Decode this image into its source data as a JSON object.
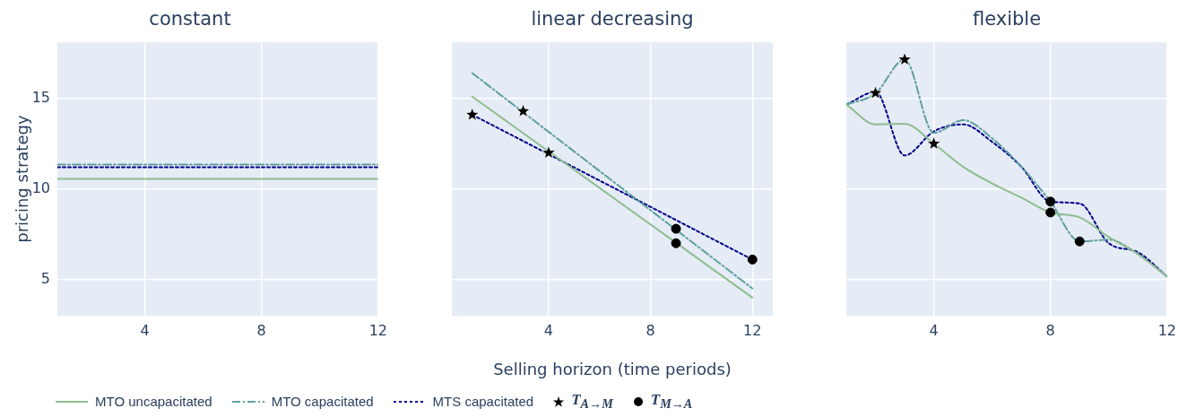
{
  "chart_data": [
    {
      "type": "line",
      "title": "constant",
      "ylabel": "pricing strategy",
      "legend": "bottom",
      "xlim": [
        1,
        12
      ],
      "xticks": [
        4,
        8,
        12
      ],
      "ylim": [
        3,
        18.1
      ],
      "yticks": [
        5,
        10,
        15
      ],
      "grid": true,
      "series": [
        {
          "name": "MTO uncapacitated",
          "color": "#8fbc8f",
          "line_style": "solid",
          "marker": "none",
          "x": [
            1,
            12
          ],
          "values": [
            10.55,
            10.55
          ]
        },
        {
          "name": "MTO capacitated",
          "color": "#5f9ea0",
          "line_style": "dashed",
          "marker": "none",
          "x": [
            1,
            12
          ],
          "values": [
            11.35,
            11.35
          ]
        },
        {
          "name": "MTS capacitated",
          "color": "#00008b",
          "line_style": "dotted",
          "marker": "none",
          "x": [
            1,
            12
          ],
          "values": [
            11.2,
            11.2
          ]
        }
      ]
    },
    {
      "type": "line",
      "title": "linear decreasing",
      "xlabel": "Selling horizon (time periods)",
      "xlim": [
        0.2,
        12.8
      ],
      "xticks": [
        4,
        8,
        12
      ],
      "ylim": [
        3,
        18.1
      ],
      "yticks": [
        5,
        10,
        15
      ],
      "grid": true,
      "tick_labels": "x",
      "legend": "bottom",
      "series": [
        {
          "name": "MTO uncapacitated",
          "color": "#8fbc8f",
          "line_style": "solid",
          "marker": "none",
          "x": [
            1,
            12
          ],
          "values": [
            15.1,
            4.0
          ]
        },
        {
          "name": "MTO capacitated",
          "color": "#5f9ea0",
          "line_style": "dashed",
          "marker": "none",
          "x": [
            1,
            12
          ],
          "values": [
            16.4,
            4.5
          ]
        },
        {
          "name": "MTS capacitated",
          "color": "#00008b",
          "line_style": "dotted",
          "marker": "none",
          "x": [
            1,
            12
          ],
          "values": [
            14.1,
            6.1
          ]
        },
        {
          "name": "T$_{A→M}$",
          "type": "scatter",
          "color": "#000000",
          "marker": "star",
          "x": [
            1,
            3,
            4
          ],
          "values": [
            14.1,
            14.3,
            12.0
          ]
        },
        {
          "name": "T$_{M→A}$",
          "type": "scatter",
          "color": "#000000",
          "marker": "circle",
          "x": [
            9,
            9,
            12
          ],
          "values": [
            7.0,
            7.8,
            6.1
          ]
        }
      ]
    },
    {
      "type": "line",
      "title": "flexible",
      "xlim": [
        1,
        12
      ],
      "xticks": [
        4,
        8,
        12
      ],
      "ylim": [
        3,
        18.1
      ],
      "yticks": [
        5,
        10,
        15
      ],
      "grid": true,
      "tick_labels": "x",
      "legend": "bottom",
      "series": [
        {
          "name": "MTO uncapacitated",
          "color": "#8fbc8f",
          "line_style": "solid",
          "marker": "none",
          "x": [
            1,
            2,
            3,
            4,
            5,
            6,
            7,
            8,
            9,
            10,
            11,
            12
          ],
          "values": [
            14.66,
            13.57,
            13.6,
            12.5,
            11.23,
            10.3,
            9.52,
            8.7,
            8.43,
            7.34,
            6.4,
            5.16
          ]
        },
        {
          "name": "MTO capacitated",
          "color": "#5f9ea0",
          "line_style": "dashed",
          "marker": "none",
          "x": [
            1,
            2,
            3,
            4,
            5,
            6,
            7,
            8,
            9,
            10,
            11,
            12
          ],
          "values": [
            14.66,
            15.28,
            17.15,
            13.1,
            13.8,
            12.8,
            11.23,
            9.3,
            7.1,
            7.2,
            6.4,
            5.16
          ]
        },
        {
          "name": "MTS capacitated",
          "color": "#00008b",
          "line_style": "dotted",
          "marker": "none",
          "x": [
            1,
            2,
            3,
            4,
            5,
            6,
            7,
            8,
            9,
            10,
            11,
            12
          ],
          "values": [
            14.66,
            15.36,
            11.85,
            13.18,
            13.57,
            12.6,
            11.23,
            9.3,
            9.2,
            7.0,
            6.5,
            5.16
          ]
        },
        {
          "name": "T$_{A→M}$",
          "type": "scatter",
          "color": "#000000",
          "marker": "star",
          "x": [
            2,
            3,
            4
          ],
          "values": [
            15.3,
            17.15,
            12.5
          ]
        },
        {
          "name": "T$_{M→A}$",
          "type": "scatter",
          "color": "#000000",
          "marker": "circle",
          "x": [
            8,
            8,
            9
          ],
          "values": [
            9.3,
            8.7,
            7.1
          ]
        }
      ]
    }
  ]
}
